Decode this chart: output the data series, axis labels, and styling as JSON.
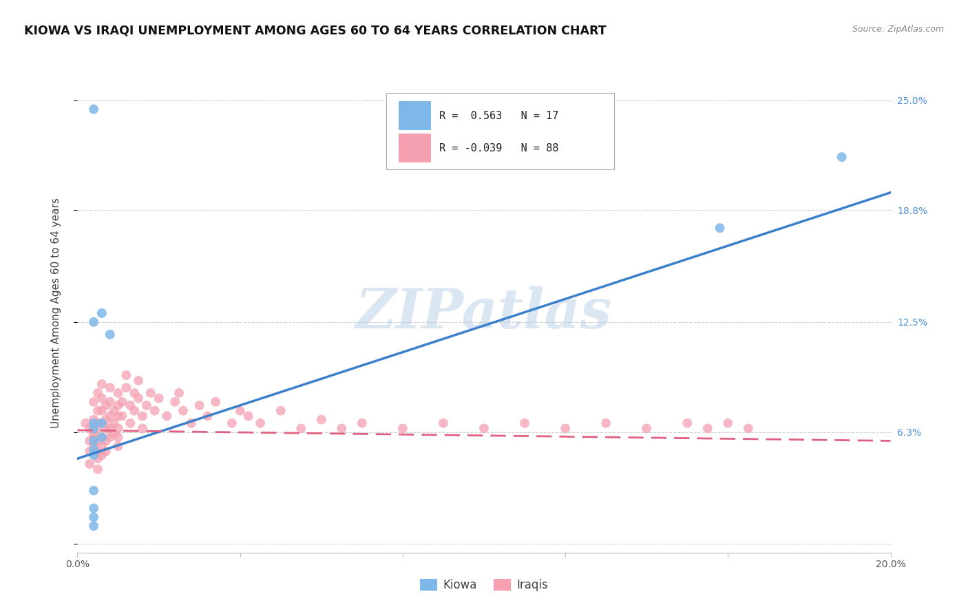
{
  "title": "KIOWA VS IRAQI UNEMPLOYMENT AMONG AGES 60 TO 64 YEARS CORRELATION CHART",
  "source": "Source: ZipAtlas.com",
  "ylabel": "Unemployment Among Ages 60 to 64 years",
  "xlim": [
    0.0,
    0.2
  ],
  "ylim": [
    -0.005,
    0.265
  ],
  "watermark": "ZIPatlas",
  "kiowa_scatter_x": [
    0.004,
    0.004,
    0.006,
    0.008,
    0.004,
    0.004,
    0.004,
    0.004,
    0.006,
    0.006,
    0.004,
    0.004,
    0.004,
    0.004,
    0.004,
    0.158,
    0.188
  ],
  "kiowa_scatter_y": [
    0.245,
    0.125,
    0.13,
    0.118,
    0.065,
    0.068,
    0.058,
    0.053,
    0.068,
    0.06,
    0.05,
    0.03,
    0.02,
    0.015,
    0.01,
    0.178,
    0.218
  ],
  "kiowa_color": "#7db8e8",
  "kiowa_R": 0.563,
  "kiowa_N": 17,
  "kiowa_line_x": [
    0.0,
    0.2
  ],
  "kiowa_line_y": [
    0.048,
    0.198
  ],
  "iraqis_scatter_x": [
    0.002,
    0.003,
    0.003,
    0.003,
    0.003,
    0.004,
    0.004,
    0.004,
    0.004,
    0.004,
    0.005,
    0.005,
    0.005,
    0.005,
    0.005,
    0.005,
    0.005,
    0.005,
    0.006,
    0.006,
    0.006,
    0.006,
    0.006,
    0.006,
    0.006,
    0.007,
    0.007,
    0.007,
    0.007,
    0.007,
    0.008,
    0.008,
    0.008,
    0.008,
    0.008,
    0.009,
    0.009,
    0.009,
    0.01,
    0.01,
    0.01,
    0.01,
    0.01,
    0.01,
    0.011,
    0.011,
    0.012,
    0.012,
    0.013,
    0.013,
    0.014,
    0.014,
    0.015,
    0.015,
    0.016,
    0.016,
    0.017,
    0.018,
    0.019,
    0.02,
    0.022,
    0.024,
    0.025,
    0.026,
    0.028,
    0.03,
    0.032,
    0.034,
    0.038,
    0.04,
    0.042,
    0.045,
    0.05,
    0.055,
    0.06,
    0.065,
    0.07,
    0.08,
    0.09,
    0.1,
    0.11,
    0.12,
    0.13,
    0.14,
    0.15,
    0.155,
    0.16,
    0.165
  ],
  "iraqis_scatter_y": [
    0.068,
    0.065,
    0.058,
    0.052,
    0.045,
    0.06,
    0.07,
    0.08,
    0.062,
    0.055,
    0.075,
    0.085,
    0.068,
    0.065,
    0.058,
    0.052,
    0.048,
    0.042,
    0.09,
    0.082,
    0.075,
    0.068,
    0.06,
    0.055,
    0.05,
    0.078,
    0.07,
    0.065,
    0.058,
    0.052,
    0.088,
    0.08,
    0.072,
    0.065,
    0.06,
    0.075,
    0.068,
    0.062,
    0.085,
    0.078,
    0.072,
    0.065,
    0.06,
    0.055,
    0.08,
    0.072,
    0.095,
    0.088,
    0.078,
    0.068,
    0.085,
    0.075,
    0.092,
    0.082,
    0.072,
    0.065,
    0.078,
    0.085,
    0.075,
    0.082,
    0.072,
    0.08,
    0.085,
    0.075,
    0.068,
    0.078,
    0.072,
    0.08,
    0.068,
    0.075,
    0.072,
    0.068,
    0.075,
    0.065,
    0.07,
    0.065,
    0.068,
    0.065,
    0.068,
    0.065,
    0.068,
    0.065,
    0.068,
    0.065,
    0.068,
    0.065,
    0.068,
    0.065
  ],
  "iraqis_color": "#f4a0b0",
  "iraqis_R": -0.039,
  "iraqis_N": 88,
  "iraqis_line_x": [
    0.0,
    0.2
  ],
  "iraqis_line_y": [
    0.064,
    0.058
  ],
  "background_color": "#ffffff",
  "grid_color": "#cccccc",
  "title_fontsize": 12.5,
  "axis_label_fontsize": 11,
  "tick_fontsize": 10,
  "legend_fontsize": 11,
  "right_yticks": [
    0.0,
    0.063,
    0.125,
    0.188,
    0.25
  ],
  "right_yticklabels": [
    "",
    "6.3%",
    "12.5%",
    "18.8%",
    "25.0%"
  ],
  "xticks": [
    0.0,
    0.04,
    0.08,
    0.12,
    0.16,
    0.2
  ],
  "xticklabels": [
    "0.0%",
    "",
    "",
    "",
    "",
    "20.0%"
  ]
}
